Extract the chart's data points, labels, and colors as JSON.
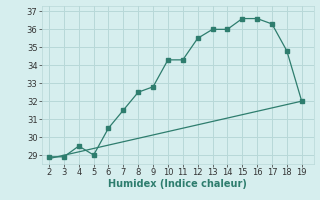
{
  "xlabel": "Humidex (Indice chaleur)",
  "curve_x": [
    2,
    3,
    4,
    5,
    6,
    7,
    8,
    9,
    10,
    11,
    12,
    13,
    14,
    15,
    16,
    17,
    18,
    19
  ],
  "curve_y": [
    28.9,
    28.9,
    29.5,
    29.0,
    30.5,
    31.5,
    32.5,
    32.8,
    34.3,
    34.3,
    35.5,
    36.0,
    36.0,
    36.6,
    36.6,
    36.3,
    34.8,
    32.0
  ],
  "line_x": [
    2,
    19
  ],
  "line_y": [
    28.8,
    32.0
  ],
  "color": "#2e7d6e",
  "bg_color": "#d6eeee",
  "grid_color": "#b8d8d8",
  "ylim": [
    28.5,
    37.3
  ],
  "xlim": [
    1.5,
    19.8
  ],
  "yticks": [
    29,
    30,
    31,
    32,
    33,
    34,
    35,
    36,
    37
  ],
  "xticks": [
    2,
    3,
    4,
    5,
    6,
    7,
    8,
    9,
    10,
    11,
    12,
    13,
    14,
    15,
    16,
    17,
    18,
    19
  ],
  "tick_fontsize": 6,
  "xlabel_fontsize": 7
}
